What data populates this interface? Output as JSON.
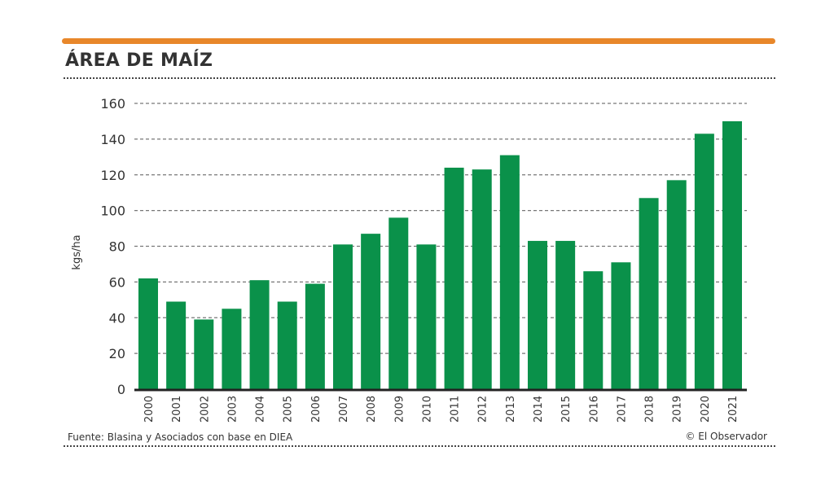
{
  "header": {
    "title": "ÁREA DE MAÍZ",
    "accent_color": "#e8872a"
  },
  "footer": {
    "source": "Fuente: Blasina y Asociados con base en DIEA",
    "credit": "© El Observador"
  },
  "chart_data": {
    "type": "bar",
    "title": "ÁREA DE MAÍZ",
    "xlabel": "",
    "ylabel": "kgs/ha",
    "ylim": [
      0,
      160
    ],
    "yticks": [
      "0",
      "20",
      "40",
      "60",
      "80",
      "100",
      "120",
      "140",
      "160"
    ],
    "ytick_values": [
      0,
      20,
      40,
      60,
      80,
      100,
      120,
      140,
      160
    ],
    "grid": true,
    "bar_color": "#0a914a",
    "categories": [
      "2000",
      "2001",
      "2002",
      "2003",
      "2004",
      "2005",
      "2006",
      "2007",
      "2008",
      "2009",
      "2010",
      "2011",
      "2012",
      "2013",
      "2014",
      "2015",
      "2016",
      "2017",
      "2018",
      "2019",
      "2020",
      "2021"
    ],
    "values": [
      62,
      49,
      39,
      45,
      61,
      49,
      59,
      81,
      87,
      96,
      81,
      124,
      123,
      131,
      83,
      83,
      66,
      71,
      107,
      117,
      143,
      150
    ]
  }
}
